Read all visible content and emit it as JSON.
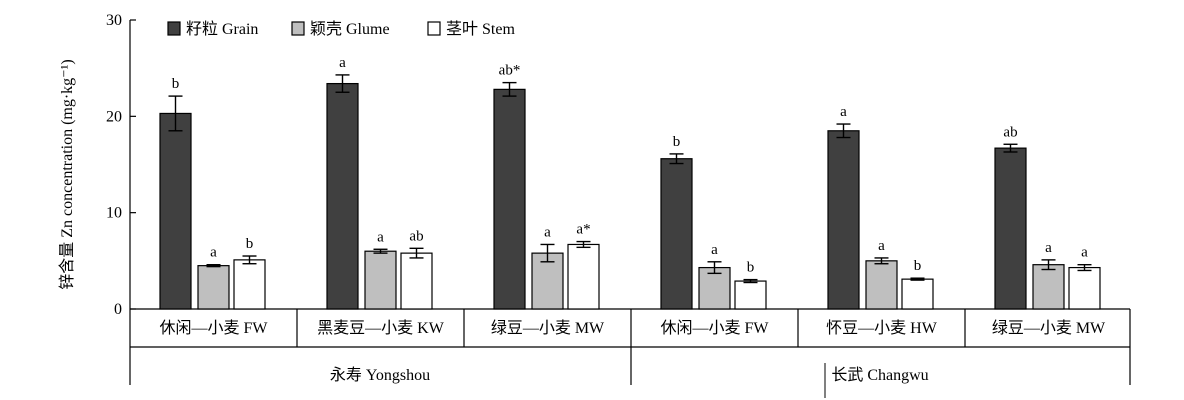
{
  "chart_data": {
    "type": "bar",
    "ylabel": "锌含量 Zn concentration (mg·kg⁻¹)",
    "ylim": [
      0,
      30
    ],
    "yticks": [
      0,
      10,
      20,
      30
    ],
    "legend_position": "top-left",
    "grid": false,
    "groups": [
      {
        "site": "永寿 Yongshou",
        "categories": [
          "休闲—小麦 FW",
          "黑麦豆—小麦 KW",
          "绿豆—小麦 MW"
        ]
      },
      {
        "site": "长武 Changwu",
        "categories": [
          "休闲—小麦 FW",
          "怀豆—小麦 HW",
          "绿豆—小麦 MW"
        ]
      }
    ],
    "series": [
      {
        "name": "籽粒 Grain",
        "color": "#404040",
        "values": [
          20.3,
          23.4,
          22.8,
          15.6,
          18.5,
          16.7
        ],
        "errors": [
          1.8,
          0.9,
          0.7,
          0.5,
          0.7,
          0.4
        ],
        "labels": [
          "b",
          "a",
          "ab*",
          "b",
          "a",
          "ab"
        ]
      },
      {
        "name": "颖壳 Glume",
        "color": "#bfbfbf",
        "values": [
          4.5,
          6.0,
          5.8,
          4.3,
          5.0,
          4.6
        ],
        "errors": [
          0.1,
          0.2,
          0.9,
          0.6,
          0.3,
          0.5
        ],
        "labels": [
          "a",
          "a",
          "a",
          "a",
          "a",
          "a"
        ]
      },
      {
        "name": "茎叶 Stem",
        "color": "#ffffff",
        "values": [
          5.1,
          5.8,
          6.7,
          2.9,
          3.1,
          4.3
        ],
        "errors": [
          0.4,
          0.5,
          0.3,
          0.15,
          0.1,
          0.3
        ],
        "labels": [
          "b",
          "ab",
          "a*",
          "b",
          "b",
          "a"
        ]
      }
    ]
  }
}
